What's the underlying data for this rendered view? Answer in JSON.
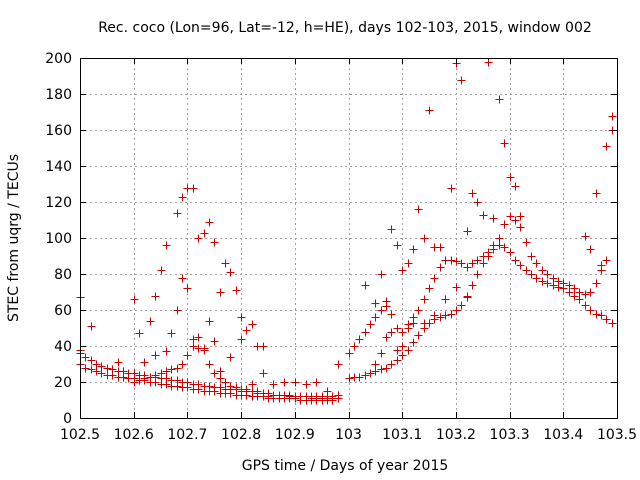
{
  "chart_data": {
    "type": "scatter",
    "title": "Rec. coco (Lon=96, Lat=-12, h=HE), days 102-103, 2015, window 002",
    "xlabel": "GPS time / Days of year 2015",
    "ylabel": "STEC from uqrg / TECUs",
    "xlim": [
      102.5,
      103.5
    ],
    "ylim": [
      0,
      200
    ],
    "xticks": [
      "102.5",
      "102.6",
      "102.7",
      "102.8",
      "102.9",
      "103",
      "103.1",
      "103.2",
      "103.3",
      "103.4",
      "103.5"
    ],
    "yticks": [
      "0",
      "20",
      "40",
      "60",
      "80",
      "100",
      "120",
      "140",
      "160",
      "180",
      "200"
    ],
    "grid": true,
    "marker": "plus",
    "color": "#cc0000",
    "series": [
      {
        "x": [
          102.5,
          102.5,
          102.51,
          102.52,
          102.53,
          102.54,
          102.55,
          102.56,
          102.57,
          102.58,
          102.59,
          102.6,
          102.61,
          102.62,
          102.63,
          102.64,
          102.65,
          102.66,
          102.67,
          102.68,
          102.69,
          102.7,
          102.71,
          102.72,
          102.73,
          102.74,
          102.75,
          102.76,
          102.77,
          102.78,
          102.79,
          102.8,
          102.81,
          102.82,
          102.83,
          102.84,
          102.85,
          102.86,
          102.87,
          102.88,
          102.89,
          102.9,
          102.91,
          102.92,
          102.93,
          102.94,
          102.95,
          102.96,
          102.97,
          102.98
        ],
        "y": [
          38,
          36,
          34,
          32,
          30,
          29,
          28,
          27,
          26,
          26,
          25,
          25,
          24,
          24,
          23,
          23,
          22,
          22,
          21,
          21,
          20,
          20,
          19,
          19,
          18,
          18,
          17,
          17,
          16,
          16,
          16,
          15,
          15,
          15,
          14,
          14,
          14,
          13,
          13,
          13,
          13,
          12,
          12,
          12,
          12,
          12,
          12,
          12,
          12,
          13
        ]
      },
      {
        "x": [
          102.5,
          102.51,
          102.52,
          102.53,
          102.54,
          102.55,
          102.56,
          102.57,
          102.58,
          102.59,
          102.6,
          102.61,
          102.62,
          102.63,
          102.64,
          102.65,
          102.66,
          102.67,
          102.68,
          102.69,
          102.7,
          102.71,
          102.72,
          102.73,
          102.74,
          102.75,
          102.76,
          102.77,
          102.78,
          102.79,
          102.8,
          102.81,
          102.82,
          102.83,
          102.84,
          102.85,
          102.86,
          102.87,
          102.88,
          102.89,
          102.9,
          102.91,
          102.92,
          102.93,
          102.94,
          102.95,
          102.96,
          102.97,
          102.98
        ],
        "y": [
          30,
          28,
          27,
          26,
          25,
          24,
          24,
          23,
          23,
          22,
          22,
          21,
          21,
          20,
          20,
          19,
          19,
          18,
          18,
          17,
          17,
          16,
          16,
          15,
          15,
          15,
          14,
          14,
          14,
          13,
          13,
          13,
          12,
          12,
          12,
          11,
          11,
          11,
          11,
          11,
          11,
          10,
          10,
          10,
          10,
          10,
          10,
          10,
          11
        ]
      },
      {
        "x": [
          102.6,
          102.61,
          102.62,
          102.63,
          102.64,
          102.65,
          102.66,
          102.67,
          102.68,
          102.69,
          102.7,
          102.71,
          102.72,
          102.73,
          102.74,
          102.75,
          102.76,
          102.77,
          102.78,
          102.79,
          102.8,
          102.81,
          102.82,
          102.83,
          102.84,
          102.85,
          102.86,
          102.87,
          102.88,
          102.89,
          102.9,
          102.91,
          102.92,
          102.93,
          102.94,
          102.95,
          102.96,
          102.97
        ],
        "y": [
          20,
          21,
          22,
          23,
          24,
          25,
          26,
          27,
          28,
          30,
          35,
          40,
          45,
          38,
          30,
          25,
          22,
          20,
          18,
          17,
          16,
          16,
          15,
          15,
          14,
          14,
          13,
          13,
          13,
          12,
          12,
          12,
          12,
          11,
          11,
          11,
          11,
          11
        ]
      },
      {
        "x": [
          102.63,
          102.64,
          102.65,
          102.66,
          102.67,
          102.68,
          102.69,
          102.7,
          102.71,
          102.72,
          102.73,
          102.74,
          102.75,
          102.76,
          102.77,
          102.78,
          102.79,
          102.8,
          102.81,
          102.82,
          102.83,
          102.84,
          102.85
        ],
        "y": [
          54,
          68,
          82,
          96,
          47,
          114,
          123,
          128,
          128,
          100,
          103,
          109,
          98,
          70,
          86,
          81,
          71,
          56,
          49,
          52,
          40,
          40,
          12
        ]
      },
      {
        "x": [
          102.5,
          102.52,
          102.57,
          102.6,
          102.61,
          102.62,
          102.64,
          102.66,
          102.67,
          102.68,
          102.69,
          102.7,
          102.71,
          102.72,
          102.73,
          102.74,
          102.75,
          102.76,
          102.78,
          102.8,
          102.82,
          102.84,
          102.86,
          102.88,
          102.9,
          102.92,
          102.94,
          102.96,
          102.98
        ],
        "y": [
          67,
          51,
          31,
          66,
          47,
          31,
          35,
          37,
          47,
          60,
          78,
          72,
          44,
          39,
          39,
          54,
          43,
          26,
          34,
          44,
          19,
          25,
          19,
          20,
          20,
          19,
          20,
          15,
          30
        ]
      },
      {
        "x": [
          103.0,
          103.01,
          103.02,
          103.03,
          103.04,
          103.05,
          103.06,
          103.07,
          103.08,
          103.09,
          103.1,
          103.11,
          103.12,
          103.13,
          103.14,
          103.15,
          103.16,
          103.17,
          103.18,
          103.19,
          103.2,
          103.21,
          103.22,
          103.23,
          103.24,
          103.25,
          103.26,
          103.27,
          103.28,
          103.29,
          103.3,
          103.31,
          103.32,
          103.33,
          103.34,
          103.35,
          103.36,
          103.37,
          103.38,
          103.39,
          103.4,
          103.41,
          103.42,
          103.43,
          103.44,
          103.45,
          103.46,
          103.47,
          103.48,
          103.49
        ],
        "y": [
          22,
          23,
          23,
          24,
          25,
          26,
          27,
          28,
          30,
          32,
          35,
          38,
          42,
          46,
          50,
          53,
          55,
          56,
          57,
          58,
          60,
          63,
          68,
          74,
          80,
          86,
          90,
          94,
          96,
          95,
          92,
          88,
          85,
          82,
          80,
          78,
          76,
          75,
          74,
          73,
          72,
          70,
          68,
          66,
          63,
          60,
          58,
          57,
          55,
          53
        ]
      },
      {
        "x": [
          103.0,
          103.01,
          103.02,
          103.03,
          103.04,
          103.05,
          103.06,
          103.07,
          103.08,
          103.09,
          103.1,
          103.11,
          103.12,
          103.13,
          103.14,
          103.15,
          103.16,
          103.17,
          103.18,
          103.19,
          103.2,
          103.21,
          103.22,
          103.23,
          103.24,
          103.25,
          103.26,
          103.27,
          103.28,
          103.29,
          103.3,
          103.31,
          103.32,
          103.33,
          103.34,
          103.35,
          103.36,
          103.37,
          103.38,
          103.39,
          103.4,
          103.41,
          103.42,
          103.43,
          103.44,
          103.45,
          103.46,
          103.47,
          103.48
        ],
        "y": [
          36,
          40,
          44,
          48,
          52,
          56,
          60,
          62,
          58,
          50,
          48,
          52,
          56,
          60,
          66,
          72,
          78,
          84,
          88,
          88,
          87,
          86,
          84,
          86,
          88,
          90,
          92,
          96,
          100,
          108,
          112,
          110,
          106,
          98,
          90,
          86,
          82,
          80,
          78,
          76,
          75,
          74,
          72,
          70,
          69,
          70,
          75,
          82,
          88
        ]
      },
      {
        "x": [
          103.03,
          103.05,
          103.06,
          103.07,
          103.08,
          103.09,
          103.1,
          103.11,
          103.12,
          103.13,
          103.14,
          103.15,
          103.16,
          103.17,
          103.18,
          103.19,
          103.2,
          103.21,
          103.22,
          103.23,
          103.24,
          103.25,
          103.26,
          103.27,
          103.28,
          103.29,
          103.3,
          103.31,
          103.32,
          103.44,
          103.45,
          103.46,
          103.47,
          103.48,
          103.49,
          103.49
        ],
        "y": [
          74,
          64,
          80,
          65,
          105,
          96,
          82,
          86,
          94,
          116,
          100,
          171,
          95,
          95,
          88,
          128,
          197,
          188,
          104,
          125,
          120,
          113,
          198,
          111,
          177,
          153,
          134,
          129,
          112,
          101,
          94,
          125,
          85,
          151,
          160,
          168
        ]
      },
      {
        "x": [
          103.05,
          103.06,
          103.07,
          103.08,
          103.09,
          103.1,
          103.11,
          103.12,
          103.14,
          103.16,
          103.18,
          103.2,
          103.22
        ],
        "y": [
          30,
          36,
          45,
          48,
          38,
          40,
          50,
          53,
          53,
          57,
          66,
          73,
          67
        ]
      }
    ]
  }
}
